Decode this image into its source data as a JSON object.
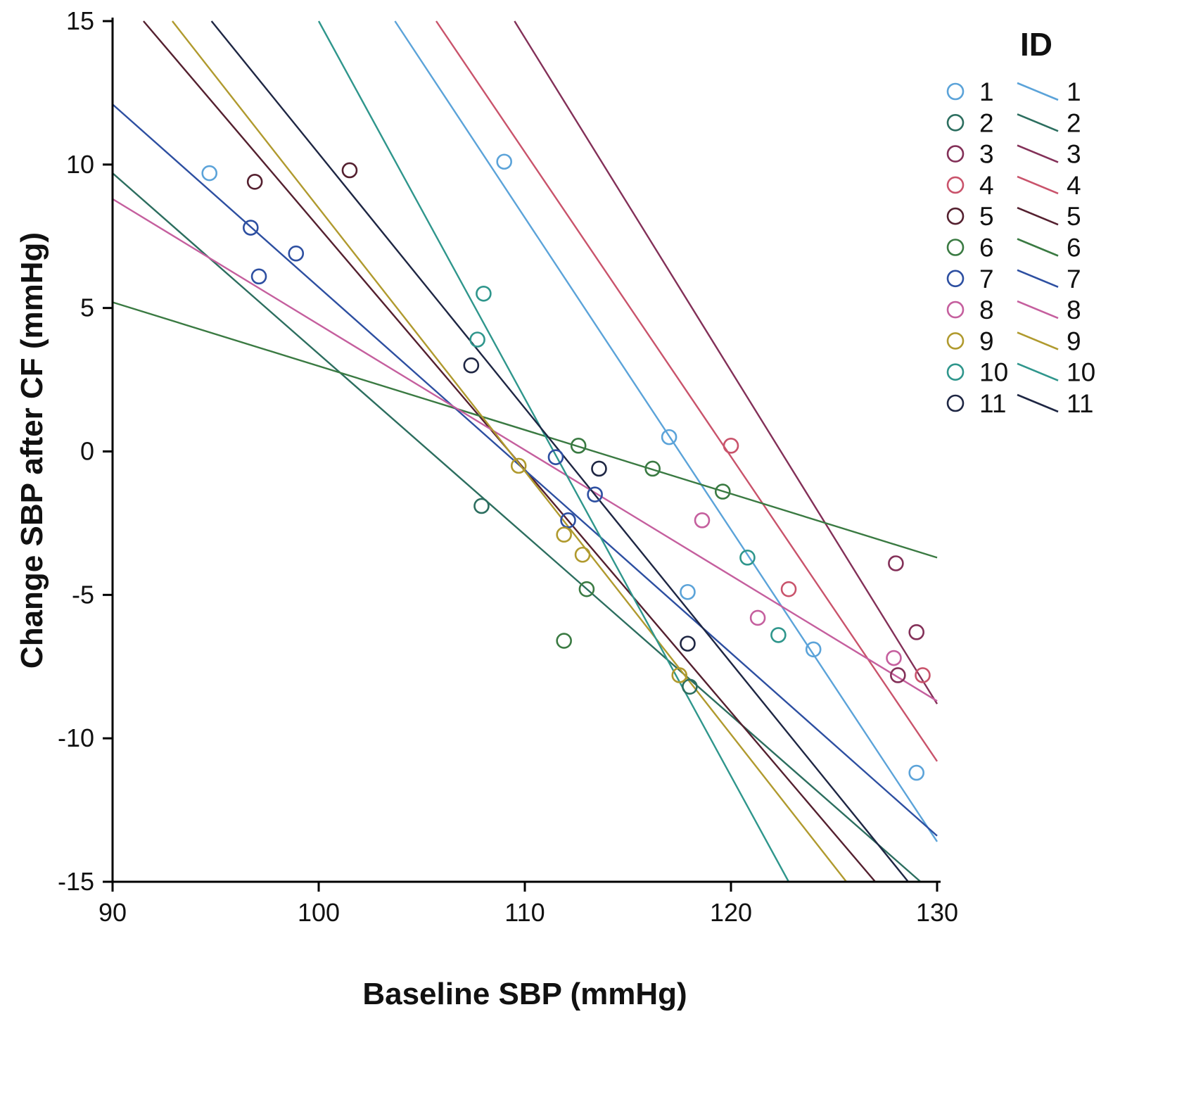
{
  "figure": {
    "background": "#ffffff",
    "axis_color": "#000000",
    "text_color": "#111111"
  },
  "chart_data": {
    "type": "scatter",
    "title": "",
    "xlabel": "Baseline SBP (mmHg)",
    "ylabel": "Change SBP after CF (mmHg)",
    "xlim": [
      90,
      130
    ],
    "ylim": [
      -15,
      15
    ],
    "xticks": [
      90,
      100,
      110,
      120,
      130
    ],
    "yticks": [
      -15,
      -10,
      -5,
      0,
      5,
      10,
      15
    ],
    "grid": false,
    "legend_title": "ID",
    "legend": {
      "title": "ID",
      "position": "top-right",
      "columns": [
        "marker",
        "line"
      ]
    },
    "series": [
      {
        "id": "1",
        "color": "#5ba3d9",
        "points": [
          [
            94.7,
            9.7
          ],
          [
            109,
            10.1
          ],
          [
            117,
            0.5
          ],
          [
            117.9,
            -4.9
          ],
          [
            124,
            -6.9
          ],
          [
            129,
            -11.2
          ]
        ],
        "line": [
          [
            103.7,
            15
          ],
          [
            130,
            -13.6
          ]
        ]
      },
      {
        "id": "2",
        "color": "#2c6e5f",
        "points": [
          [
            107.9,
            -1.9
          ],
          [
            118,
            -8.2
          ]
        ],
        "line": [
          [
            90,
            9.7
          ],
          [
            129.2,
            -15
          ]
        ]
      },
      {
        "id": "3",
        "color": "#833058",
        "points": [
          [
            128,
            -3.9
          ],
          [
            129,
            -6.3
          ],
          [
            128.1,
            -7.8
          ]
        ],
        "line": [
          [
            109.5,
            15
          ],
          [
            130,
            -8.8
          ]
        ]
      },
      {
        "id": "4",
        "color": "#c9536b",
        "points": [
          [
            120,
            0.2
          ],
          [
            122.8,
            -4.8
          ],
          [
            129.3,
            -7.8
          ]
        ],
        "line": [
          [
            105.7,
            15
          ],
          [
            130,
            -10.8
          ]
        ]
      },
      {
        "id": "5",
        "color": "#54202f",
        "points": [
          [
            96.9,
            9.4
          ],
          [
            101.5,
            9.8
          ]
        ],
        "line": [
          [
            91.5,
            15
          ],
          [
            127,
            -15
          ]
        ]
      },
      {
        "id": "6",
        "color": "#3a7a42",
        "points": [
          [
            112.6,
            0.2
          ],
          [
            116.2,
            -0.6
          ],
          [
            119.6,
            -1.4
          ],
          [
            111.9,
            -6.6
          ],
          [
            113,
            -4.8
          ]
        ],
        "line": [
          [
            90,
            5.2
          ],
          [
            130,
            -3.7
          ]
        ]
      },
      {
        "id": "7",
        "color": "#2d4fa1",
        "points": [
          [
            96.7,
            7.8
          ],
          [
            97.1,
            6.1
          ],
          [
            98.9,
            6.9
          ],
          [
            111.5,
            -0.2
          ],
          [
            112.1,
            -2.4
          ],
          [
            113.4,
            -1.5
          ]
        ],
        "line": [
          [
            90,
            12.1
          ],
          [
            130,
            -13.4
          ]
        ]
      },
      {
        "id": "8",
        "color": "#c55f9e",
        "points": [
          [
            118.6,
            -2.4
          ],
          [
            121.3,
            -5.8
          ],
          [
            127.9,
            -7.2
          ]
        ],
        "line": [
          [
            90,
            8.8
          ],
          [
            130,
            -8.7
          ]
        ]
      },
      {
        "id": "9",
        "color": "#b09a2e",
        "points": [
          [
            109.7,
            -0.5
          ],
          [
            111.9,
            -2.9
          ],
          [
            112.8,
            -3.6
          ],
          [
            117.5,
            -7.8
          ]
        ],
        "line": [
          [
            92.9,
            15
          ],
          [
            125.6,
            -15
          ]
        ]
      },
      {
        "id": "10",
        "color": "#2f968c",
        "points": [
          [
            108,
            5.5
          ],
          [
            107.7,
            3.9
          ],
          [
            120.8,
            -3.7
          ],
          [
            122.3,
            -6.4
          ]
        ],
        "line": [
          [
            100,
            15
          ],
          [
            122.8,
            -15
          ]
        ]
      },
      {
        "id": "11",
        "color": "#1e2643",
        "points": [
          [
            107.4,
            3.0
          ],
          [
            113.6,
            -0.6
          ],
          [
            117.9,
            -6.7
          ]
        ],
        "line": [
          [
            94.8,
            15
          ],
          [
            128.6,
            -15
          ]
        ]
      }
    ]
  }
}
